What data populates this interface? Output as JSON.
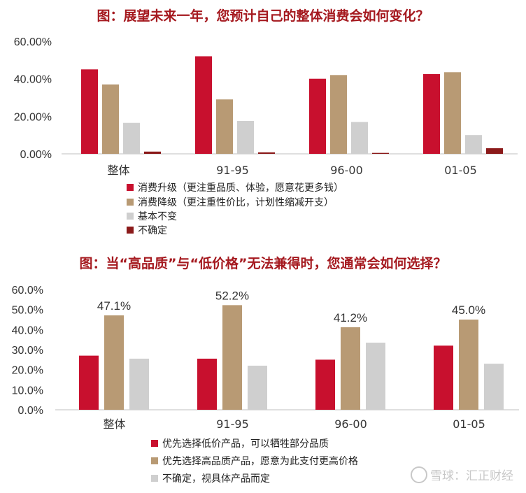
{
  "colors": {
    "series1": "#c8102e",
    "series2": "#b89a74",
    "series3": "#cfcfcf",
    "series4": "#8b1a1a",
    "title": "#a5191f"
  },
  "chart_data": [
    {
      "type": "bar",
      "title": "图：展望未来一年，您预计自己的整体消费会如何变化？",
      "categories": [
        "整体",
        "91-95",
        "96-00",
        "01-05"
      ],
      "series": [
        {
          "name": "消费升级（更注重品质、体验，愿意花更多钱）",
          "values": [
            45.0,
            52.0,
            40.0,
            42.5
          ]
        },
        {
          "name": "消费降级（更注重性价比，计划性缩减开支）",
          "values": [
            37.0,
            29.0,
            42.0,
            43.5
          ]
        },
        {
          "name": "基本不变",
          "values": [
            16.5,
            17.5,
            17.0,
            10.0
          ]
        },
        {
          "name": "不确定",
          "values": [
            1.2,
            0.8,
            0.5,
            3.0
          ]
        }
      ],
      "yticks": [
        "0.00%",
        "20.00%",
        "40.00%",
        "60.00%"
      ],
      "ylim": [
        0,
        60
      ],
      "legend_position": "bottom"
    },
    {
      "type": "bar",
      "title": "图：当“高品质”与“低价格”无法兼得时，您通常会如何选择？",
      "categories": [
        "整体",
        "91-95",
        "96-00",
        "01-05"
      ],
      "series": [
        {
          "name": "优先选择低价产品，可以牺牲部分品质",
          "values": [
            27.0,
            25.5,
            25.0,
            32.0
          ]
        },
        {
          "name": "优先选择高品质产品，愿意为此支付更高价格",
          "values": [
            47.1,
            52.2,
            41.2,
            45.0
          ]
        },
        {
          "name": "不确定，视具体产品而定",
          "values": [
            25.5,
            22.0,
            33.5,
            23.0
          ]
        }
      ],
      "data_labels": [
        "47.1%",
        "52.2%",
        "41.2%",
        "45.0%"
      ],
      "yticks": [
        "0.0%",
        "10.0%",
        "20.0%",
        "30.0%",
        "40.0%",
        "50.0%",
        "60.0%"
      ],
      "ylim": [
        0,
        60
      ],
      "legend_position": "bottom"
    }
  ],
  "watermark": "雪球：汇正财经"
}
